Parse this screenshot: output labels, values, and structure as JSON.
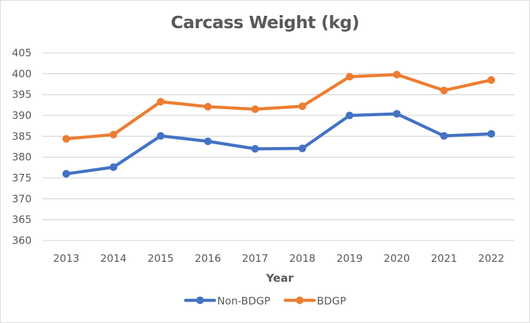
{
  "chart_data": {
    "type": "line",
    "title": "Carcass Weight (kg)",
    "xlabel": "Year",
    "ylabel": "",
    "categories": [
      "2013",
      "2014",
      "2015",
      "2016",
      "2017",
      "2018",
      "2019",
      "2020",
      "2021",
      "2022"
    ],
    "ylim": [
      360,
      405
    ],
    "yticks": [
      360,
      365,
      370,
      375,
      380,
      385,
      390,
      395,
      400,
      405
    ],
    "grid": true,
    "legend": "bottom",
    "series": [
      {
        "name": "Non-BDGP",
        "color": "#4472c4",
        "values": [
          376.0,
          377.6,
          385.1,
          383.8,
          382.0,
          382.1,
          390.0,
          390.4,
          385.1,
          385.6
        ]
      },
      {
        "name": "BDGP",
        "color": "#ed7d31",
        "values": [
          384.4,
          385.4,
          393.3,
          392.1,
          391.5,
          392.2,
          399.3,
          399.8,
          396.0,
          398.5
        ]
      }
    ]
  }
}
